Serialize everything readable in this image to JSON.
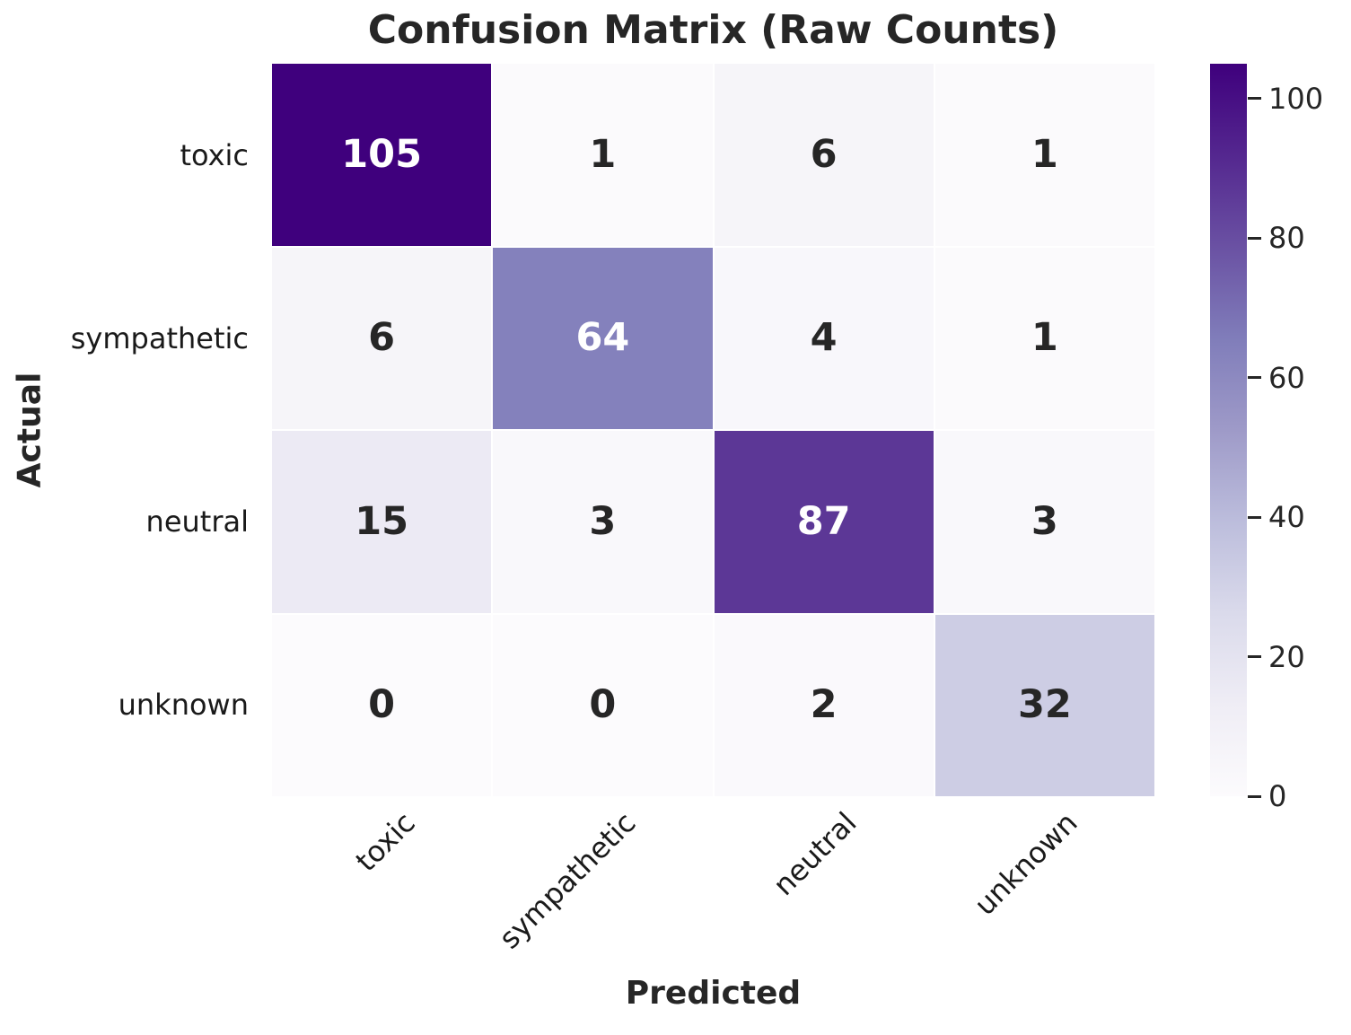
{
  "chart_data": {
    "type": "heatmap",
    "title": "Confusion Matrix (Raw Counts)",
    "xlabel": "Predicted",
    "ylabel": "Actual",
    "x_categories": [
      "toxic",
      "sympathetic",
      "neutral",
      "unknown"
    ],
    "y_categories": [
      "toxic",
      "sympathetic",
      "neutral",
      "unknown"
    ],
    "values": [
      [
        105,
        1,
        6,
        1
      ],
      [
        6,
        64,
        4,
        1
      ],
      [
        15,
        3,
        87,
        3
      ],
      [
        0,
        0,
        2,
        32
      ]
    ],
    "vmin": 0,
    "vmax": 105,
    "grid": false,
    "colorbar": {
      "position": "right",
      "ticks": [
        0,
        20,
        40,
        60,
        80,
        100
      ]
    },
    "colormap": {
      "name": "Purples",
      "stops": [
        "#fcfbfd",
        "#efedf5",
        "#dadaeb",
        "#bcbddc",
        "#9e9ac8",
        "#807dba",
        "#6a51a3",
        "#54278f",
        "#3f007d"
      ]
    },
    "colors": {
      "annotation_on_dark": "#ffffff",
      "annotation_on_light": "#262626",
      "tick_label": "#1a1a1a",
      "grid_line": "#ffffff",
      "background": "#ffffff"
    }
  }
}
